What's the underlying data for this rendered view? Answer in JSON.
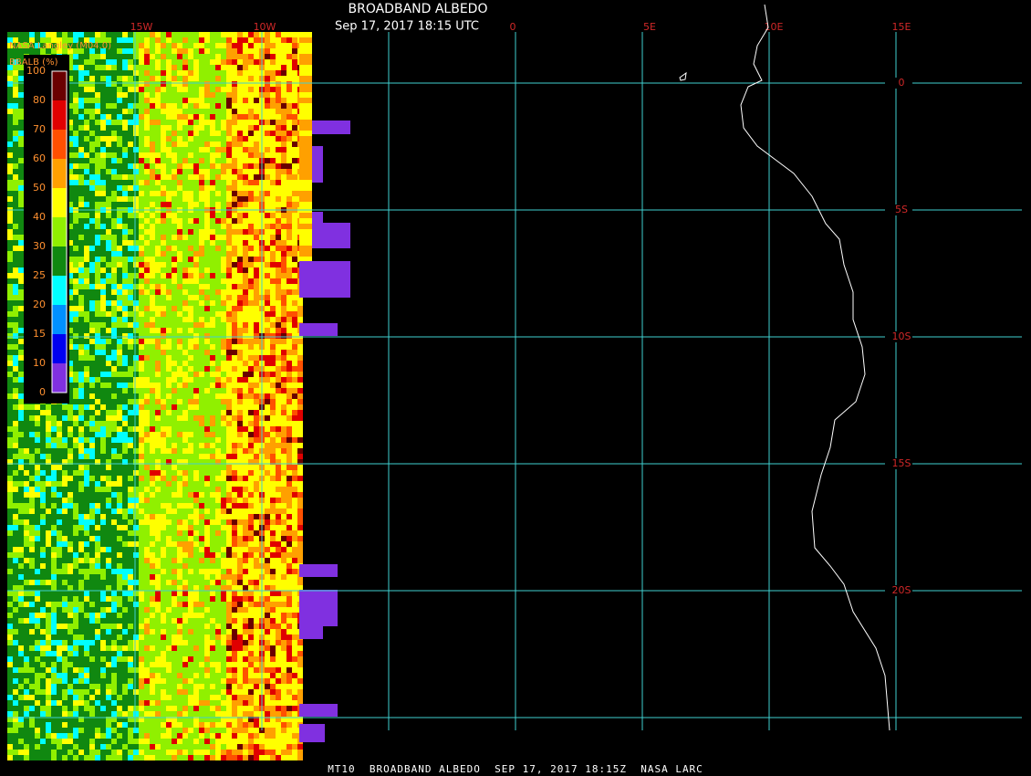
{
  "header": {
    "title": "BROADBAND ALBEDO",
    "subtitle": "Sep 17, 2017 18:15 UTC",
    "producer": "NASA Langley (M04.0)"
  },
  "colorbar": {
    "label": "BBALB (%)",
    "ticks": [
      100,
      80,
      70,
      60,
      50,
      40,
      30,
      25,
      20,
      15,
      10,
      0
    ],
    "colors": [
      "#6a0000",
      "#e00000",
      "#ff5000",
      "#ffa000",
      "#ffff00",
      "#90f000",
      "#108810",
      "#00ffff",
      "#0090ff",
      "#0000f0",
      "#8030e0"
    ]
  },
  "longitude_labels": [
    "15W",
    "10W",
    "0",
    "5E",
    "10E",
    "15E"
  ],
  "latitude_labels": [
    "0",
    "5S",
    "10S",
    "15S",
    "20S"
  ],
  "footer": "MT10  BROADBAND ALBEDO  SEP 17, 2017 18:15Z  NASA LARC"
}
